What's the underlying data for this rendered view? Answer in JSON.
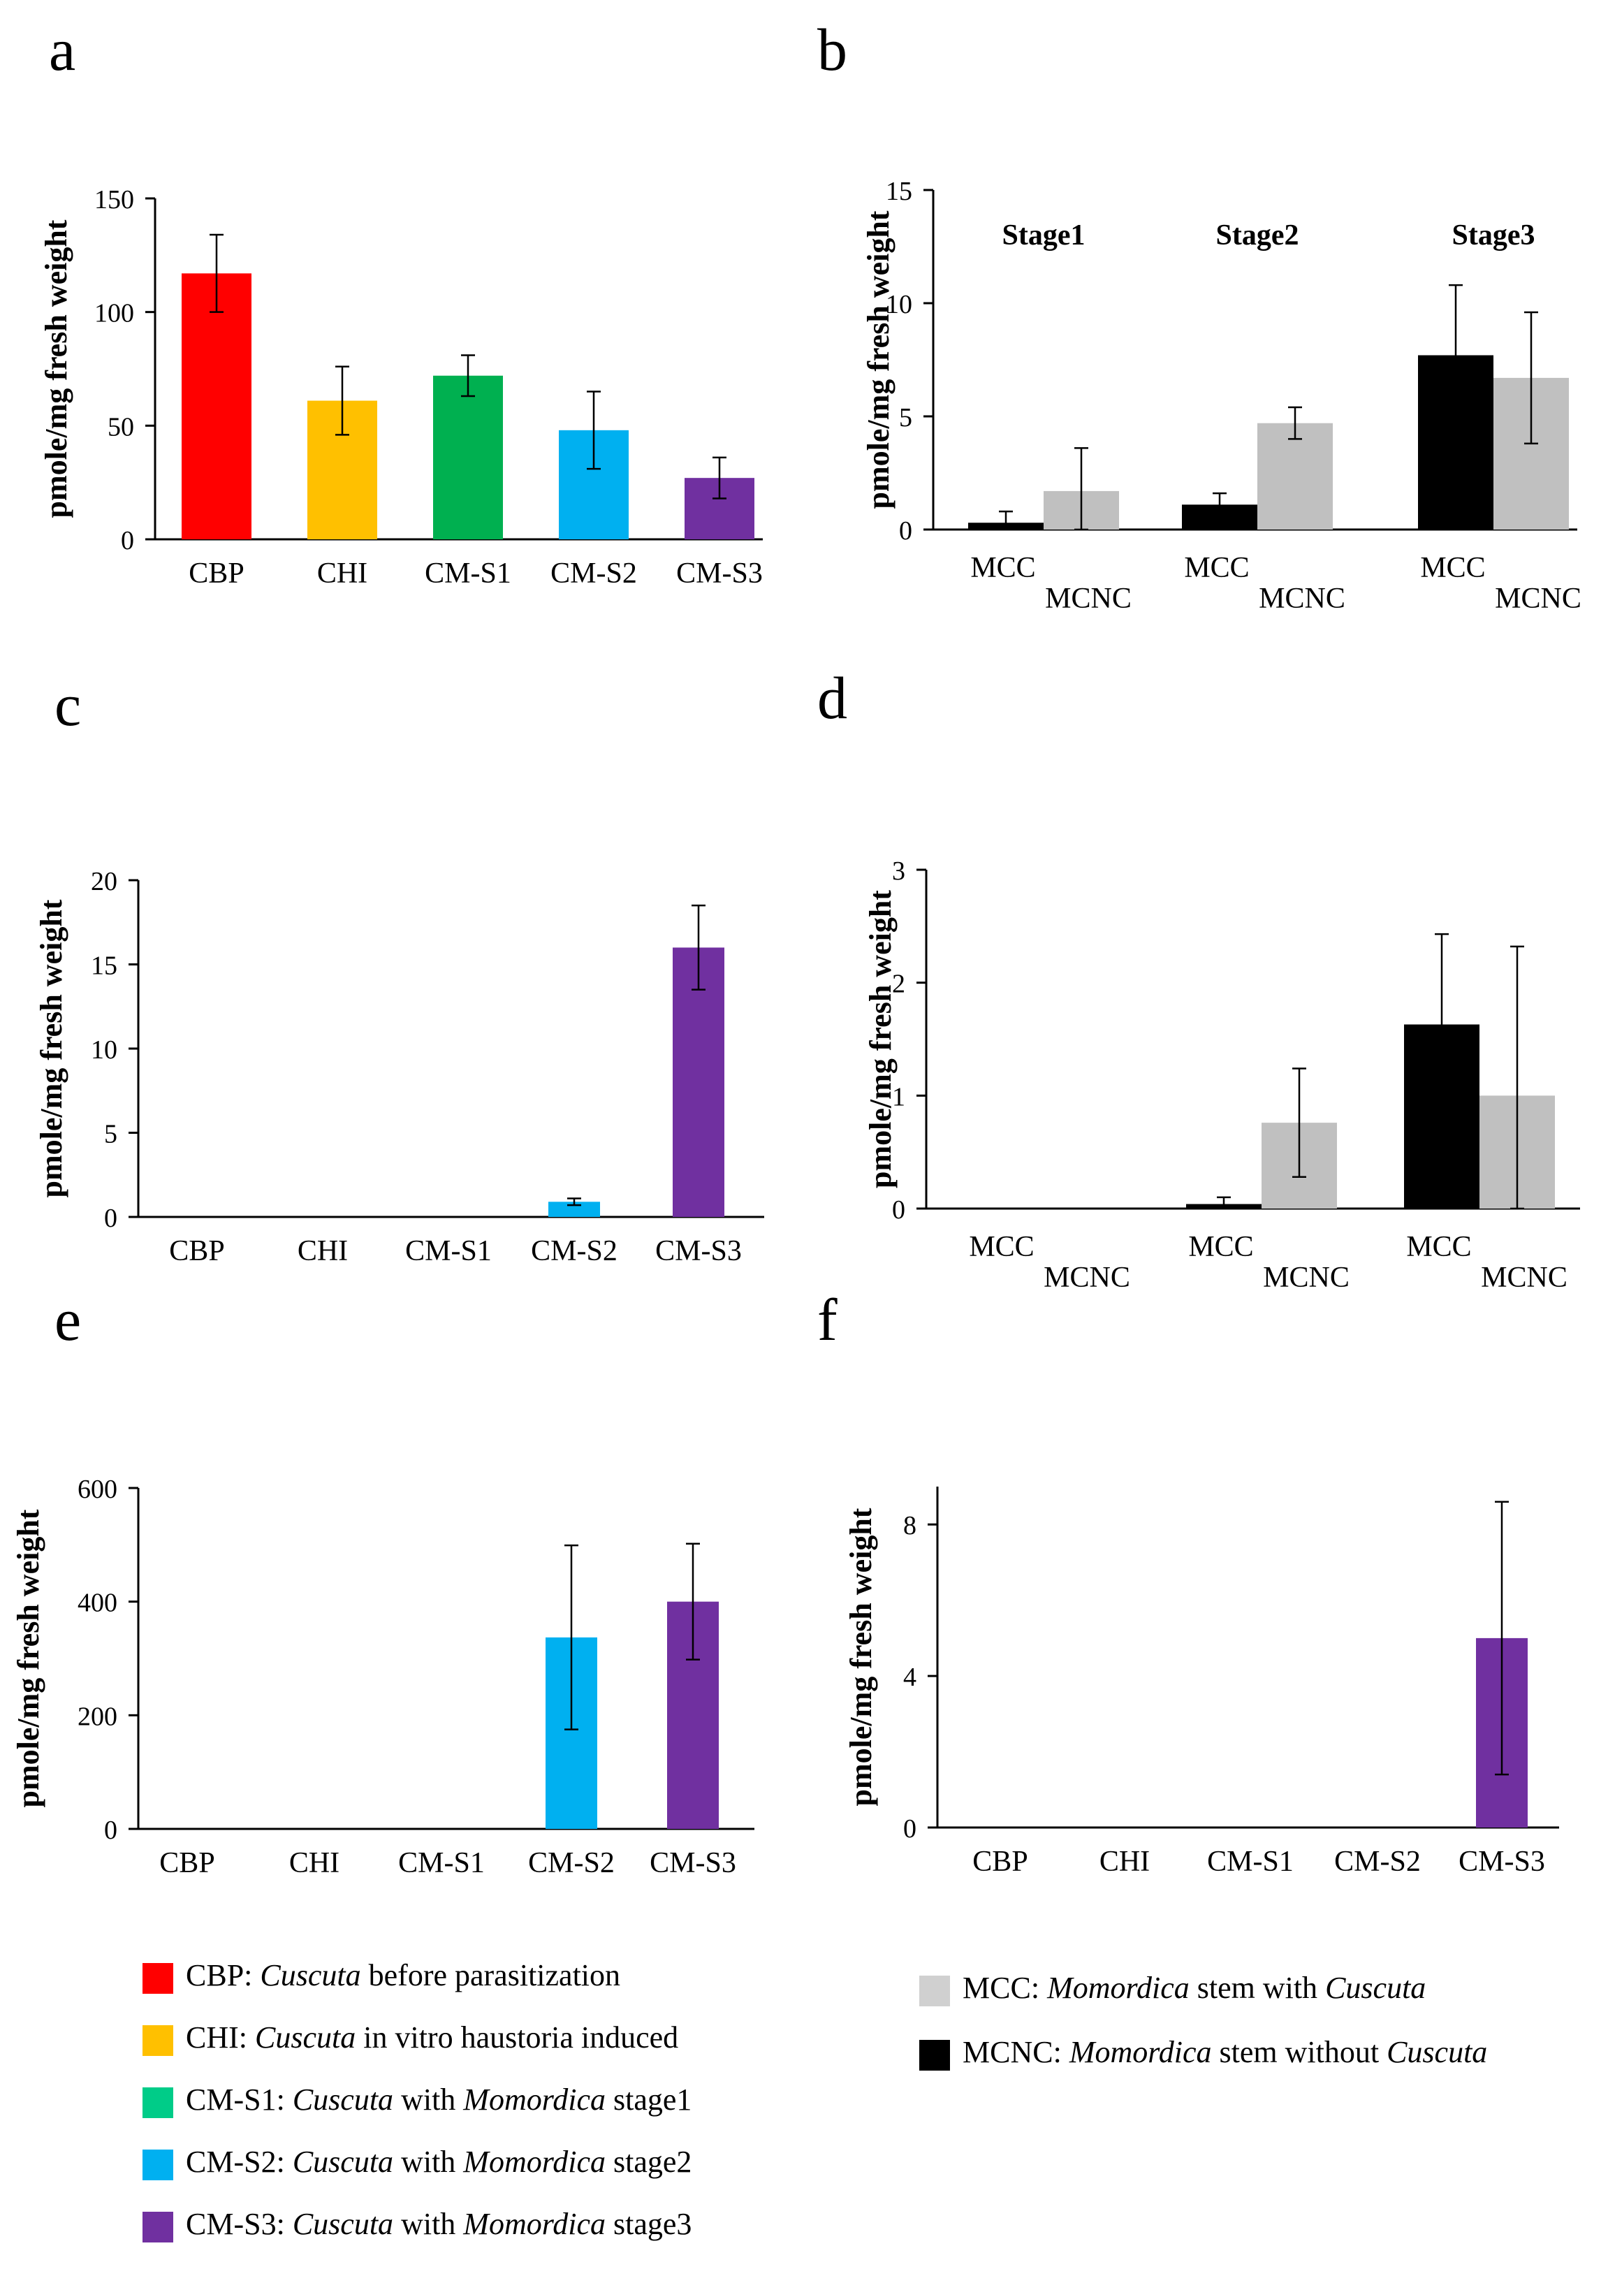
{
  "ylabel": "pmole/mg fresh weight",
  "colors": {
    "CBP": "#ff0000",
    "CHI": "#ffc000",
    "CM-S1": "#00b050",
    "CM-S2": "#00b0f0",
    "CM-S3": "#7030a0",
    "MCC": "#c0c0c0",
    "MCNC": "#000000",
    "MCC_legend_swatch": "#d0d0d0",
    "CM-S1_legend_swatch": "#00cc88"
  },
  "chart_data": [
    {
      "panel": "a",
      "type": "bar",
      "categories": [
        "CBP",
        "CHI",
        "CM-S1",
        "CM-S2",
        "CM-S3"
      ],
      "values": [
        117,
        61,
        72,
        48,
        27
      ],
      "errors": [
        17,
        15,
        9,
        17,
        9
      ],
      "ylim": [
        0,
        150
      ],
      "yticks": [
        0,
        50,
        100,
        150
      ],
      "ylabel": "pmole/mg fresh weight"
    },
    {
      "panel": "b",
      "type": "bar",
      "groups": [
        "Stage1",
        "Stage2",
        "Stage3"
      ],
      "group_category_labels": [
        "MCC",
        "MCNC"
      ],
      "series": [
        {
          "name": "MCNC",
          "values": [
            0.3,
            1.1,
            7.7
          ],
          "errors": [
            0.5,
            0.5,
            3.1
          ]
        },
        {
          "name": "MCC",
          "values": [
            1.7,
            4.7,
            6.7
          ],
          "errors": [
            1.9,
            0.7,
            2.9
          ]
        }
      ],
      "ylim": [
        0,
        15
      ],
      "yticks": [
        0,
        5,
        10,
        15
      ],
      "ylabel": "pmole/mg fresh weight"
    },
    {
      "panel": "c",
      "type": "bar",
      "categories": [
        "CBP",
        "CHI",
        "CM-S1",
        "CM-S2",
        "CM-S3"
      ],
      "values": [
        0,
        0,
        0,
        0.9,
        16
      ],
      "errors": [
        0,
        0,
        0,
        0.2,
        2.5
      ],
      "ylim": [
        0,
        20
      ],
      "yticks": [
        0,
        5,
        10,
        15,
        20
      ],
      "ylabel": "pmole/mg fresh weight"
    },
    {
      "panel": "d",
      "type": "bar",
      "groups": [
        "",
        "",
        ""
      ],
      "group_category_labels": [
        "MCC",
        "MCNC"
      ],
      "series": [
        {
          "name": "MCNC",
          "values": [
            0,
            0.04,
            1.63
          ],
          "errors": [
            0,
            0.06,
            0.8
          ]
        },
        {
          "name": "MCC",
          "values": [
            0,
            0.76,
            1.0
          ],
          "errors": [
            0,
            0.48,
            1.32
          ]
        }
      ],
      "ylim": [
        0,
        3
      ],
      "yticks": [
        0,
        1,
        2,
        3
      ],
      "ylabel": "pmole/mg fresh weight"
    },
    {
      "panel": "e",
      "type": "bar",
      "categories": [
        "CBP",
        "CHI",
        "CM-S1",
        "CM-S2",
        "CM-S3"
      ],
      "values": [
        0,
        0,
        0,
        337,
        400
      ],
      "errors": [
        0,
        0,
        0,
        162,
        102
      ],
      "ylim": [
        0,
        600
      ],
      "yticks": [
        0,
        200,
        400,
        600
      ],
      "ylabel": "pmole/mg fresh weight"
    },
    {
      "panel": "f",
      "type": "bar",
      "categories": [
        "CBP",
        "CHI",
        "CM-S1",
        "CM-S2",
        "CM-S3"
      ],
      "values": [
        0,
        0,
        0,
        0,
        5
      ],
      "errors": [
        0,
        0,
        0,
        0,
        3.6
      ],
      "ylim": [
        0,
        9
      ],
      "yticks": [
        0,
        4,
        8
      ],
      "ylabel": "pmole/mg fresh weight"
    }
  ],
  "legend_left": [
    {
      "key": "CBP",
      "abbr": "CBP",
      "sep": ": ",
      "genus": "Cuscuta",
      "mid": " before parasitization",
      "host": "",
      "tail": ""
    },
    {
      "key": "CHI",
      "abbr": "CHI",
      "sep": ": ",
      "genus": "Cuscuta",
      "mid": " in vitro haustoria induced",
      "host": "",
      "tail": ""
    },
    {
      "key": "CM-S1",
      "abbr": "CM-S1",
      "sep": ": ",
      "genus": "Cuscuta",
      "mid": " with ",
      "host": "Momordica",
      "tail": " stage1"
    },
    {
      "key": "CM-S2",
      "abbr": "CM-S2",
      "sep": ": ",
      "genus": "Cuscuta",
      "mid": " with ",
      "host": "Momordica",
      "tail": " stage2"
    },
    {
      "key": "CM-S3",
      "abbr": "CM-S3",
      "sep": ": ",
      "genus": "Cuscuta",
      "mid": " with ",
      "host": "Momordica",
      "tail": " stage3"
    }
  ],
  "legend_right": [
    {
      "key": "MCC",
      "abbr": "MCC",
      "sep": ": ",
      "genus": "Momordica",
      "mid": " stem with ",
      "host": "Cuscuta",
      "tail": ""
    },
    {
      "key": "MCNC",
      "abbr": "MCNC",
      "sep": ": ",
      "genus": "Momordica",
      "mid": " stem without ",
      "host": "Cuscuta",
      "tail": ""
    }
  ]
}
